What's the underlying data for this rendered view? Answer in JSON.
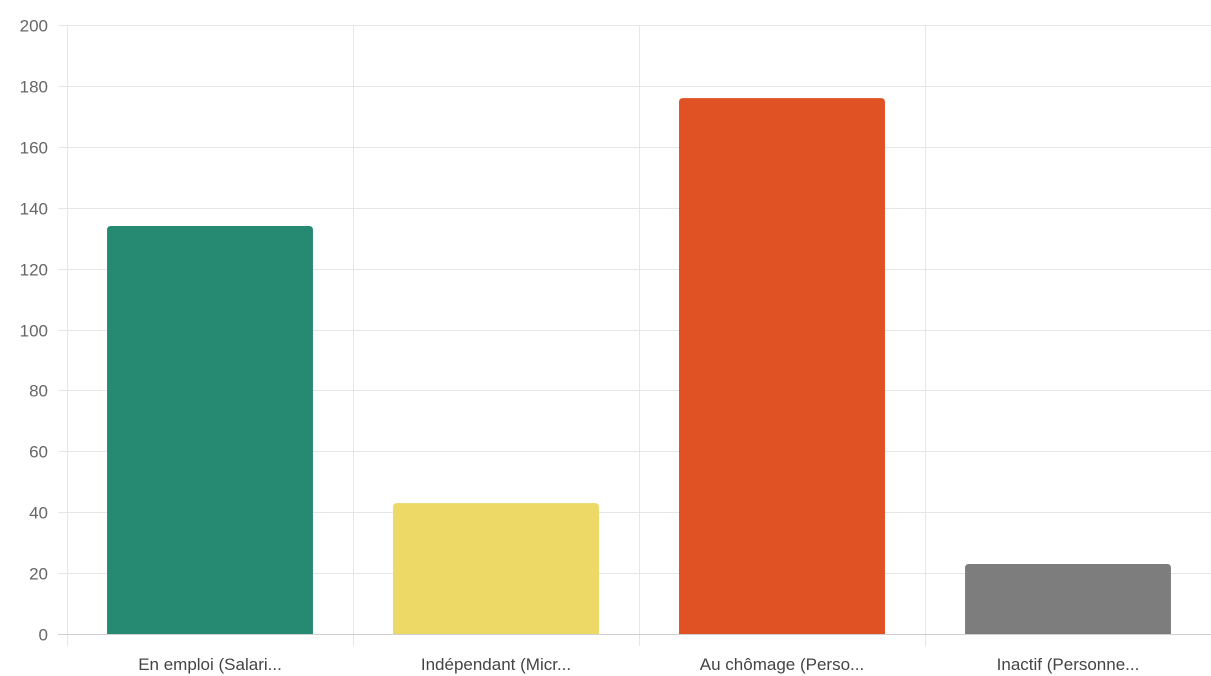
{
  "chart_data": {
    "type": "bar",
    "title": "",
    "xlabel": "",
    "ylabel": "",
    "categories": [
      "En emploi (Salari...",
      "Indépendant (Micr...",
      "Au chômage (Perso...",
      "Inactif (Personne..."
    ],
    "values": [
      134,
      43,
      176,
      23
    ],
    "colors": [
      "#268a73",
      "#ecd966",
      "#e05123",
      "#7d7d7d"
    ],
    "ylim": [
      0,
      200
    ],
    "yticks": [
      0,
      20,
      40,
      60,
      80,
      100,
      120,
      140,
      160,
      180,
      200
    ],
    "grid": true,
    "legend": "none"
  }
}
